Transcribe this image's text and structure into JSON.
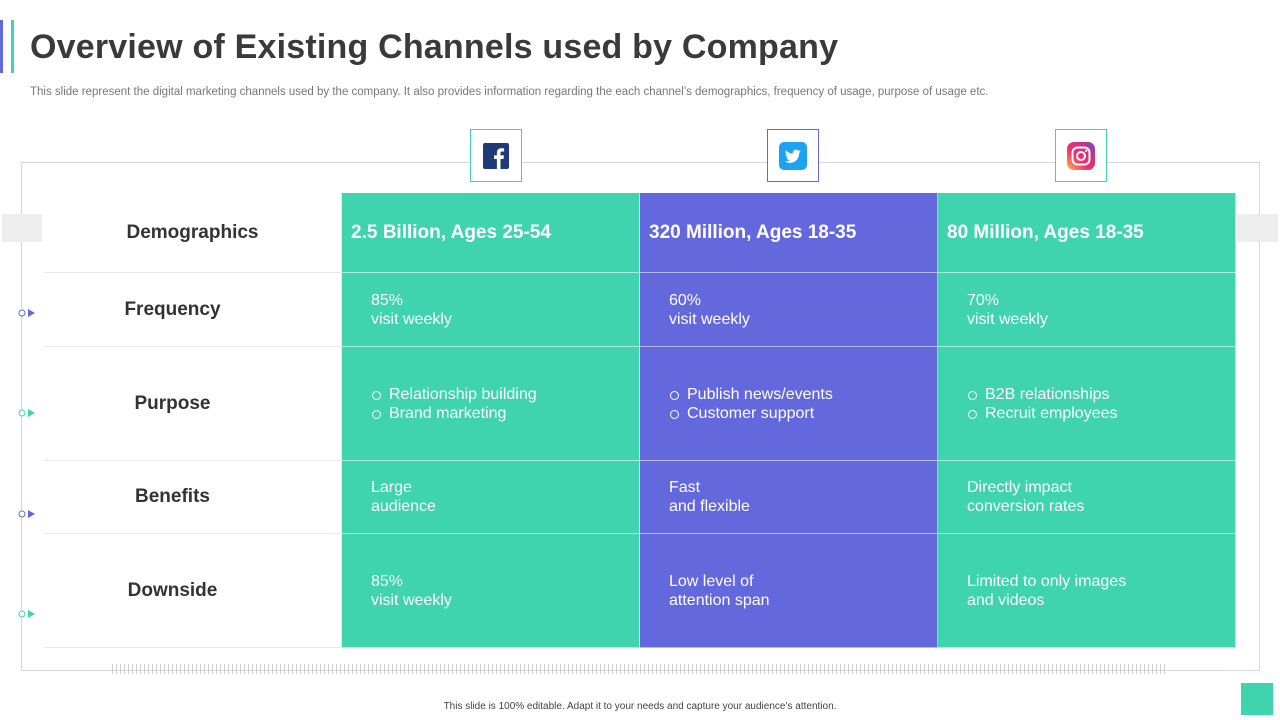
{
  "slide": {
    "title": "Overview of Existing Channels used by Company",
    "subtitle": "This slide represent the digital marketing channels used by the company. It also provides information regarding the each channel’s demographics, frequency of usage, purpose of usage etc.",
    "footer": "This slide is 100% editable. Adapt it to your needs and capture your audience’s attention."
  },
  "colors": {
    "teal": "#3fd4ae",
    "purple": "#6468dd",
    "facebook": "#1f3a78",
    "twitter": "#1da1f2"
  },
  "channels": [
    {
      "icon": "facebook-icon",
      "color": "teal"
    },
    {
      "icon": "twitter-icon",
      "color": "purple"
    },
    {
      "icon": "instagram-icon",
      "color": "teal"
    }
  ],
  "rows": [
    {
      "label": "Demographics",
      "cells": [
        "2.5 Billion, Ages 25-54",
        "320 Million, Ages 18-35",
        "80 Million, Ages 18-35"
      ]
    },
    {
      "label": "Frequency",
      "cells": [
        [
          "85%",
          "visit weekly"
        ],
        [
          "60%",
          "visit weekly"
        ],
        [
          "70%",
          "visit weekly"
        ]
      ]
    },
    {
      "label": "Purpose",
      "cells": [
        [
          "Relationship building",
          "Brand marketing"
        ],
        [
          "Publish news/events",
          "Customer support"
        ],
        [
          "B2B relationships",
          "Recruit employees"
        ]
      ]
    },
    {
      "label": "Benefits",
      "cells": [
        [
          "Large",
          "audience"
        ],
        [
          "Fast",
          "and flexible"
        ],
        [
          "Directly impact",
          "conversion rates"
        ]
      ]
    },
    {
      "label": "Downside",
      "cells": [
        [
          "85%",
          "visit weekly"
        ],
        [
          "Low level of",
          "attention span"
        ],
        [
          "Limited to only images",
          "and videos"
        ]
      ]
    }
  ]
}
